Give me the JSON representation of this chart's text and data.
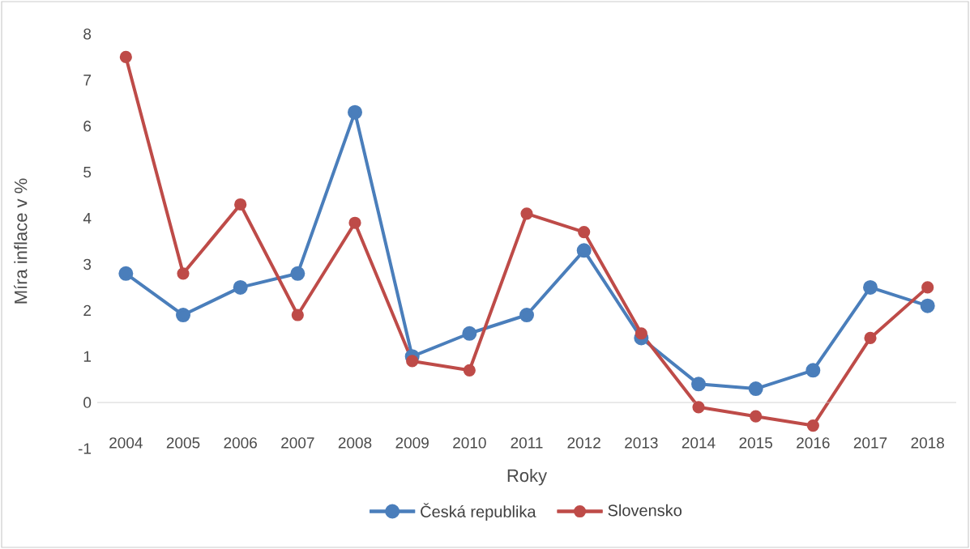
{
  "chart_data": {
    "type": "line",
    "xlabel": "Roky",
    "ylabel": "Míra inflace v %",
    "categories": [
      "2004",
      "2005",
      "2006",
      "2007",
      "2008",
      "2009",
      "2010",
      "2011",
      "2012",
      "2013",
      "2014",
      "2015",
      "2016",
      "2017",
      "2018"
    ],
    "series": [
      {
        "name": "Česká republika",
        "color": "#4a7ebb",
        "values": [
          2.8,
          1.9,
          2.5,
          2.8,
          6.3,
          1.0,
          1.5,
          1.9,
          3.3,
          1.4,
          0.4,
          0.3,
          0.7,
          2.5,
          2.1
        ]
      },
      {
        "name": "Slovensko",
        "color": "#be4b48",
        "values": [
          7.5,
          2.8,
          4.3,
          1.9,
          3.9,
          0.9,
          0.7,
          4.1,
          3.7,
          1.5,
          -0.1,
          -0.3,
          -0.5,
          1.4,
          2.5
        ]
      }
    ],
    "ylim": [
      -1,
      8
    ],
    "yticks": [
      -1,
      0,
      1,
      2,
      3,
      4,
      5,
      6,
      7,
      8
    ],
    "legend": "bottom",
    "marker": "circle",
    "line_style": "solid"
  }
}
